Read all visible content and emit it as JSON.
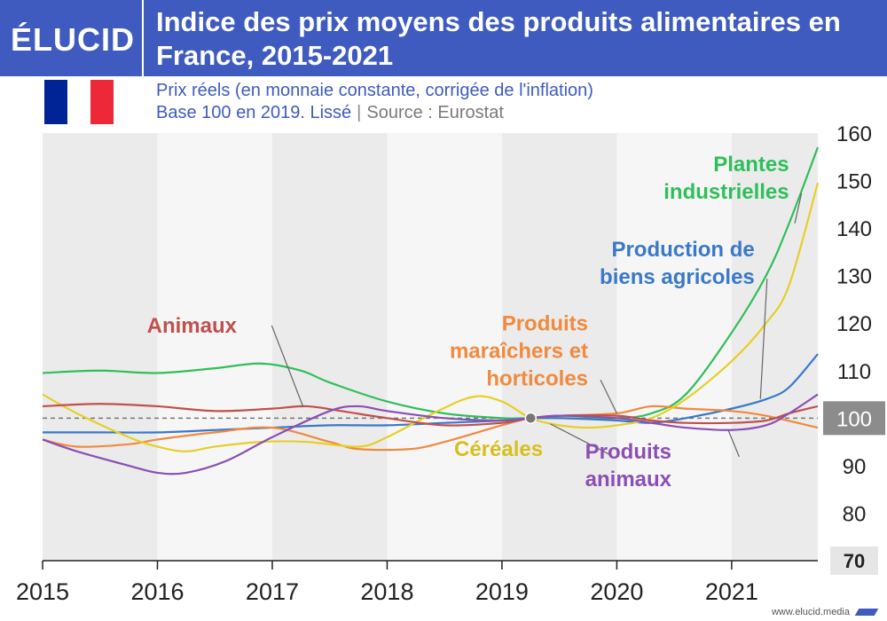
{
  "brand": {
    "logo_text": "ÉLUCID",
    "url": "www.elucid.media"
  },
  "header": {
    "title": "Indice des prix moyens des produits alimentaires en France, 2015-2021",
    "subtitle_line1": "Prix réels (en monnaie constante, corrigée de l'inflation)",
    "subtitle_line2": "Base 100 en 2019. Lissé",
    "source": "Source : Eurostat"
  },
  "flag": {
    "colors": [
      "#002395",
      "#ffffff",
      "#ed2939"
    ]
  },
  "chart_data": {
    "type": "line",
    "title": "Indice des prix moyens des produits alimentaires en France, 2015-2021",
    "xlabel": "",
    "ylabel": "",
    "xlim": [
      2015,
      2021.75
    ],
    "ylim": [
      70,
      160
    ],
    "x_ticks": [
      "2015",
      "2016",
      "2017",
      "2018",
      "2019",
      "2020",
      "2021"
    ],
    "y_ticks": [
      70,
      80,
      90,
      100,
      110,
      120,
      130,
      140,
      150,
      160
    ],
    "reference_line": {
      "value": 100,
      "style": "dashed"
    },
    "base_point": {
      "x": 2019.25,
      "y": 100
    },
    "background": "alternating grey year bands",
    "series": [
      {
        "name": "Plantes industrielles",
        "color": "#2fbf5a",
        "points": [
          [
            2015,
            109.5
          ],
          [
            2015.5,
            110
          ],
          [
            2016,
            109.5
          ],
          [
            2016.5,
            110.5
          ],
          [
            2016.9,
            111.5
          ],
          [
            2017.25,
            110
          ],
          [
            2017.5,
            107.5
          ],
          [
            2018,
            103.5
          ],
          [
            2018.5,
            101
          ],
          [
            2019,
            100
          ],
          [
            2019.25,
            100
          ],
          [
            2019.5,
            100
          ],
          [
            2020,
            100
          ],
          [
            2020.3,
            101
          ],
          [
            2020.6,
            105
          ],
          [
            2021,
            118
          ],
          [
            2021.3,
            130
          ],
          [
            2021.5,
            141
          ],
          [
            2021.75,
            157
          ]
        ]
      },
      {
        "name": "Production de biens agricoles",
        "color": "#3a78c9",
        "points": [
          [
            2015,
            97
          ],
          [
            2015.5,
            97
          ],
          [
            2016,
            97
          ],
          [
            2016.5,
            97.5
          ],
          [
            2017,
            98
          ],
          [
            2017.5,
            98.5
          ],
          [
            2018,
            98.5
          ],
          [
            2018.5,
            99
          ],
          [
            2019,
            99.5
          ],
          [
            2019.25,
            100
          ],
          [
            2019.5,
            100
          ],
          [
            2020,
            99.5
          ],
          [
            2020.3,
            99
          ],
          [
            2020.6,
            100
          ],
          [
            2021,
            102
          ],
          [
            2021.3,
            104
          ],
          [
            2021.5,
            106.5
          ],
          [
            2021.75,
            113.5
          ]
        ]
      },
      {
        "name": "Produits maraîchers et horticoles",
        "color": "#f08a3e",
        "points": [
          [
            2015,
            95.5
          ],
          [
            2015.3,
            94
          ],
          [
            2015.75,
            94.5
          ],
          [
            2016,
            95.5
          ],
          [
            2016.5,
            97
          ],
          [
            2017,
            98
          ],
          [
            2017.5,
            95
          ],
          [
            2017.75,
            93.5
          ],
          [
            2018.2,
            93.5
          ],
          [
            2018.5,
            95
          ],
          [
            2019,
            98.5
          ],
          [
            2019.25,
            100
          ],
          [
            2019.5,
            100.5
          ],
          [
            2020,
            101
          ],
          [
            2020.3,
            102.5
          ],
          [
            2020.6,
            102
          ],
          [
            2021,
            101.5
          ],
          [
            2021.3,
            100.5
          ],
          [
            2021.75,
            98
          ]
        ]
      },
      {
        "name": "Céréales",
        "color": "#e6cf27",
        "points": [
          [
            2015,
            105
          ],
          [
            2015.3,
            101
          ],
          [
            2015.75,
            96
          ],
          [
            2016,
            94
          ],
          [
            2016.25,
            93
          ],
          [
            2016.5,
            94
          ],
          [
            2016.9,
            95
          ],
          [
            2017.3,
            95
          ],
          [
            2017.75,
            94
          ],
          [
            2018,
            96
          ],
          [
            2018.4,
            101
          ],
          [
            2018.75,
            104.5
          ],
          [
            2019,
            103.5
          ],
          [
            2019.25,
            100
          ],
          [
            2019.5,
            98.5
          ],
          [
            2019.75,
            98
          ],
          [
            2020,
            98.5
          ],
          [
            2020.3,
            100
          ],
          [
            2020.6,
            104
          ],
          [
            2021,
            112
          ],
          [
            2021.3,
            120
          ],
          [
            2021.5,
            128
          ],
          [
            2021.75,
            149.5
          ]
        ]
      },
      {
        "name": "Animaux",
        "color": "#c0504d",
        "points": [
          [
            2015,
            102.5
          ],
          [
            2015.5,
            103
          ],
          [
            2016,
            102.5
          ],
          [
            2016.5,
            101.5
          ],
          [
            2017,
            102
          ],
          [
            2017.3,
            102.5
          ],
          [
            2017.6,
            101.5
          ],
          [
            2018,
            100
          ],
          [
            2018.5,
            98.5
          ],
          [
            2019,
            99
          ],
          [
            2019.25,
            100
          ],
          [
            2019.5,
            100.5
          ],
          [
            2020,
            100.5
          ],
          [
            2020.3,
            99.5
          ],
          [
            2020.6,
            99
          ],
          [
            2021,
            99
          ],
          [
            2021.3,
            99.5
          ],
          [
            2021.5,
            101
          ],
          [
            2021.75,
            102.5
          ]
        ]
      },
      {
        "name": "Produits animaux",
        "color": "#8b4fb3",
        "points": [
          [
            2015,
            95.5
          ],
          [
            2015.3,
            93
          ],
          [
            2015.75,
            90
          ],
          [
            2016,
            88.5
          ],
          [
            2016.25,
            88.5
          ],
          [
            2016.6,
            91
          ],
          [
            2017,
            96
          ],
          [
            2017.5,
            101.5
          ],
          [
            2017.75,
            102.5
          ],
          [
            2018,
            101.5
          ],
          [
            2018.5,
            100
          ],
          [
            2019,
            99.5
          ],
          [
            2019.25,
            100
          ],
          [
            2019.5,
            100.5
          ],
          [
            2020,
            100
          ],
          [
            2020.3,
            99
          ],
          [
            2020.6,
            98
          ],
          [
            2021,
            97.5
          ],
          [
            2021.3,
            98.5
          ],
          [
            2021.5,
            101
          ],
          [
            2021.75,
            105
          ]
        ]
      }
    ],
    "annotations": [
      {
        "series": "Plantes industrielles",
        "lines": [
          "Plantes",
          "industrielles"
        ],
        "color": "#2fbf5a",
        "x": 2021.5,
        "y": 152,
        "anchor": "end",
        "target": [
          2021.55,
          141
        ]
      },
      {
        "series": "Production de biens agricoles",
        "lines": [
          "Production de",
          "biens agricoles"
        ],
        "color": "#3a78c9",
        "x": 2021.2,
        "y": 134,
        "anchor": "end",
        "target": [
          2021.25,
          104
        ]
      },
      {
        "series": "Produits maraîchers et horticoles",
        "lines": [
          "Produits",
          "maraîchers et",
          "horticoles"
        ],
        "color": "#f08a3e",
        "x": 2019.75,
        "y": 118.5,
        "anchor": "end",
        "target": [
          2020.0,
          101
        ]
      },
      {
        "series": "Animaux",
        "lines": [
          "Animaux"
        ],
        "color": "#c0504d",
        "x": 2016.3,
        "y": 118,
        "anchor": "middle",
        "target": [
          2017.27,
          102.3
        ]
      },
      {
        "series": "Céréales",
        "lines": [
          "Céréales"
        ],
        "color": "#d6c01f",
        "x": 2018.97,
        "y": 92,
        "anchor": "middle",
        "target": [
          2019.42,
          98.8
        ]
      },
      {
        "series": "Produits animaux",
        "lines": [
          "Produits",
          "animaux"
        ],
        "color": "#8b4fb3",
        "x": 2020.1,
        "y": 91.5,
        "anchor": "middle",
        "target": [
          2020.97,
          97.5
        ]
      }
    ]
  }
}
